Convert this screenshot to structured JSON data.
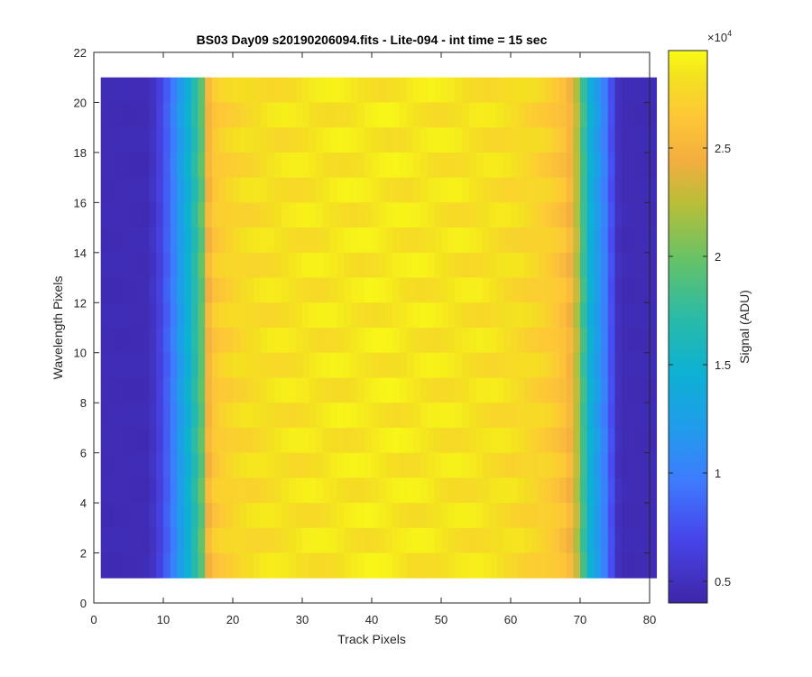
{
  "chart_data": {
    "type": "heatmap",
    "title": "BS03 Day09  s20190206094.fits - Lite-094 - int time = 15 sec",
    "xlabel": "Track Pixels",
    "ylabel": "Wavelength Pixels",
    "xlim": [
      0,
      80
    ],
    "ylim": [
      0,
      22
    ],
    "x_ticks": [
      "0",
      "10",
      "20",
      "30",
      "40",
      "50",
      "60",
      "70",
      "80"
    ],
    "y_ticks": [
      "0",
      "2",
      "4",
      "6",
      "8",
      "10",
      "12",
      "14",
      "16",
      "18",
      "20",
      "22"
    ],
    "x_range": [
      1,
      80
    ],
    "y_range": [
      1,
      21
    ],
    "colormap": "parula",
    "colorbar": {
      "label": "Signal (ADU)",
      "multiplier_label": "×10",
      "multiplier_exponent": "4",
      "range": [
        4000,
        29500
      ],
      "ticks": [
        {
          "value": 5000,
          "label": "0.5"
        },
        {
          "value": 10000,
          "label": "1"
        },
        {
          "value": 15000,
          "label": "1.5"
        },
        {
          "value": 20000,
          "label": "2"
        },
        {
          "value": 25000,
          "label": "2.5"
        }
      ]
    },
    "column_profile": {
      "track_pixels": [
        1,
        2,
        3,
        4,
        5,
        6,
        7,
        8,
        9,
        10,
        11,
        12,
        13,
        14,
        15,
        16,
        17,
        18,
        19,
        20,
        21,
        22,
        23,
        24,
        25,
        26,
        27,
        28,
        29,
        30,
        31,
        32,
        33,
        34,
        35,
        36,
        37,
        38,
        39,
        40,
        41,
        42,
        43,
        44,
        45,
        46,
        47,
        48,
        49,
        50,
        51,
        52,
        53,
        54,
        55,
        56,
        57,
        58,
        59,
        60,
        61,
        62,
        63,
        64,
        65,
        66,
        67,
        68,
        69,
        70,
        71,
        72,
        73,
        74,
        75,
        76,
        77,
        78,
        79,
        80
      ],
      "signal_adu": [
        4600,
        4600,
        4600,
        4600,
        4600,
        4600,
        4600,
        5200,
        6500,
        8200,
        10000,
        12200,
        14500,
        16800,
        19500,
        25000,
        26500,
        27000,
        27300,
        27600,
        27800,
        27900,
        28000,
        28100,
        28200,
        28200,
        28300,
        28300,
        28300,
        28400,
        28400,
        28400,
        28400,
        28500,
        28500,
        28500,
        28500,
        28500,
        28600,
        28600,
        28600,
        28600,
        28600,
        28500,
        28500,
        28500,
        28500,
        28500,
        28400,
        28400,
        28400,
        28400,
        28300,
        28300,
        28300,
        28200,
        28200,
        28100,
        28000,
        27900,
        27800,
        27600,
        27400,
        27200,
        26900,
        26500,
        26000,
        25000,
        22500,
        18000,
        14500,
        12000,
        10000,
        7500,
        5000,
        4600,
        4600,
        4600,
        4600,
        4600
      ]
    }
  }
}
